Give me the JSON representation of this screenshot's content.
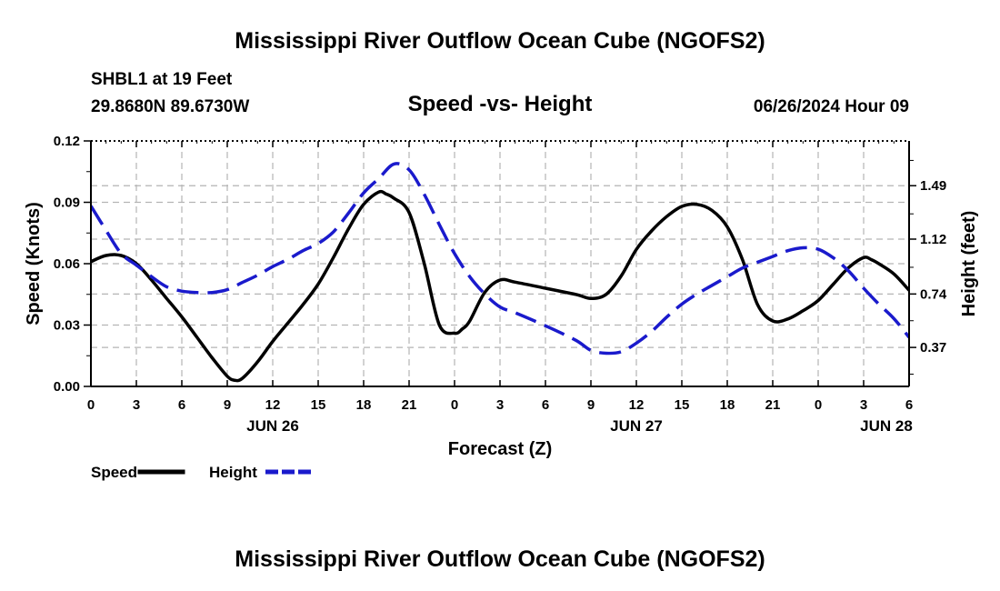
{
  "page": {
    "title": "Mississippi River Outflow Ocean Cube (NGOFS2)",
    "title_repeat": "Mississippi River Outflow Ocean Cube (NGOFS2)",
    "station": "SHBL1 at 19 Feet",
    "coords": "29.8680N  89.6730W",
    "datetime": "06/26/2024 Hour 09"
  },
  "chart_data": {
    "type": "line",
    "title": "Speed -vs- Height",
    "xlabel": "Forecast (Z)",
    "ylabel": "Speed (Knots)",
    "y2label": "Height (feet)",
    "xlim": [
      0,
      54
    ],
    "ylim": [
      0,
      0.12
    ],
    "y2lim": [
      0.1,
      1.8
    ],
    "yticks": [
      0,
      0.03,
      0.06,
      0.09,
      0.12
    ],
    "ytick_labels": [
      "0.00",
      "0.03",
      "0.06",
      "0.09",
      "0.12"
    ],
    "y2ticks": [
      0.37,
      0.74,
      1.12,
      1.49
    ],
    "y2tick_labels": [
      "0.37",
      "0.74",
      "1.12",
      "1.49"
    ],
    "xticks": [
      0,
      3,
      6,
      9,
      12,
      15,
      18,
      21,
      24,
      27,
      30,
      33,
      36,
      39,
      42,
      45,
      48,
      51,
      54
    ],
    "xtick_labels": [
      "0",
      "3",
      "6",
      "9",
      "12",
      "15",
      "18",
      "21",
      "0",
      "3",
      "6",
      "9",
      "12",
      "15",
      "18",
      "21",
      "0",
      "3",
      "6"
    ],
    "date_labels": [
      {
        "x": 12,
        "label": "JUN 26"
      },
      {
        "x": 36,
        "label": "JUN 27"
      },
      {
        "x": 52.5,
        "label": "JUN 28"
      }
    ],
    "grid": true,
    "legend": [
      {
        "label": "Speed",
        "color": "#000000",
        "dash": "solid"
      },
      {
        "label": "Height",
        "color": "#1a1acc",
        "dash": "dashed"
      }
    ],
    "series": [
      {
        "name": "Speed",
        "axis": "left",
        "color": "#000000",
        "dash": "solid",
        "x": [
          0,
          1,
          2,
          3,
          4,
          5,
          6,
          7,
          8,
          9,
          9.5,
          10,
          11,
          12,
          13,
          14,
          15,
          16,
          17,
          18,
          19,
          19.5,
          20,
          21,
          22,
          23,
          24,
          24.5,
          25,
          26,
          27,
          28,
          30,
          32,
          33,
          34,
          35,
          36,
          37,
          38,
          39,
          40,
          41,
          42,
          43,
          44,
          45,
          46,
          47,
          48,
          49,
          50,
          51,
          51.5,
          52,
          53,
          54
        ],
        "values": [
          0.061,
          0.064,
          0.064,
          0.06,
          0.052,
          0.043,
          0.034,
          0.024,
          0.014,
          0.005,
          0.003,
          0.004,
          0.012,
          0.022,
          0.031,
          0.04,
          0.05,
          0.063,
          0.077,
          0.089,
          0.095,
          0.094,
          0.092,
          0.085,
          0.06,
          0.03,
          0.026,
          0.028,
          0.032,
          0.046,
          0.052,
          0.051,
          0.048,
          0.045,
          0.043,
          0.045,
          0.054,
          0.067,
          0.076,
          0.083,
          0.088,
          0.089,
          0.086,
          0.078,
          0.062,
          0.04,
          0.032,
          0.033,
          0.037,
          0.042,
          0.05,
          0.058,
          0.063,
          0.062,
          0.06,
          0.055,
          0.047
        ]
      },
      {
        "name": "Height",
        "axis": "right",
        "color": "#1a1acc",
        "dash": "dashed",
        "x": [
          0,
          1,
          2,
          3,
          4,
          5,
          6,
          7,
          8,
          9,
          10,
          11,
          12,
          13,
          14,
          15,
          16,
          17,
          18,
          19,
          20,
          21,
          22,
          23,
          24,
          25,
          26,
          27,
          28,
          30,
          32,
          33,
          34,
          35,
          36,
          37,
          38,
          39,
          40,
          41,
          42,
          43,
          44,
          45,
          46,
          47,
          48,
          49,
          50,
          51,
          52,
          53,
          54
        ],
        "values": [
          1.35,
          1.18,
          1.02,
          0.94,
          0.86,
          0.79,
          0.76,
          0.75,
          0.75,
          0.77,
          0.82,
          0.87,
          0.93,
          0.98,
          1.04,
          1.09,
          1.17,
          1.3,
          1.44,
          1.54,
          1.64,
          1.6,
          1.43,
          1.22,
          1.02,
          0.86,
          0.74,
          0.65,
          0.61,
          0.52,
          0.42,
          0.35,
          0.33,
          0.34,
          0.4,
          0.48,
          0.58,
          0.67,
          0.74,
          0.8,
          0.86,
          0.92,
          0.96,
          1.0,
          1.04,
          1.06,
          1.05,
          0.99,
          0.9,
          0.78,
          0.67,
          0.57,
          0.44
        ]
      }
    ]
  }
}
